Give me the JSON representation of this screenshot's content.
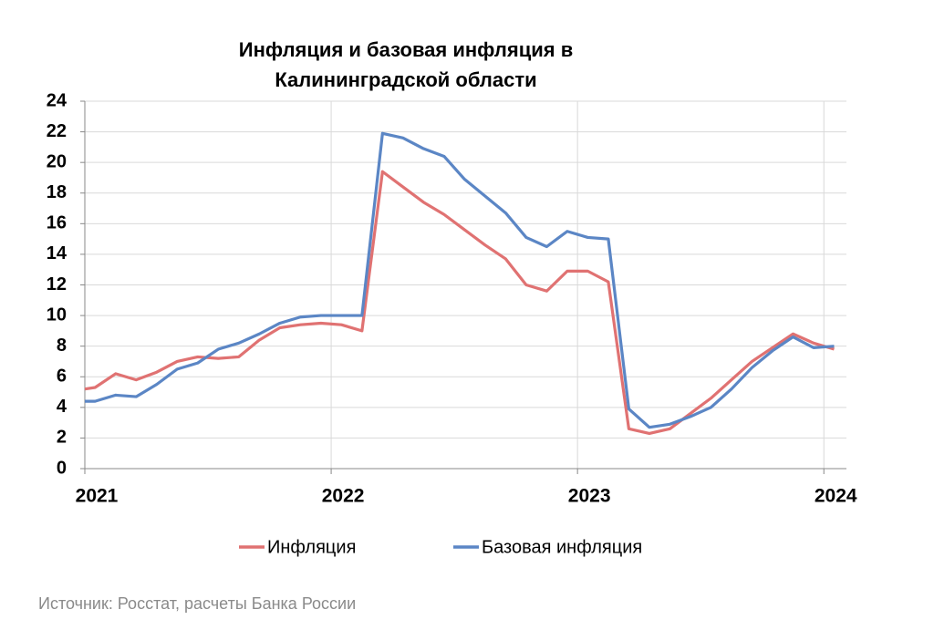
{
  "chart_data": {
    "type": "line",
    "title": "Инфляция и базовая инфляция в Калининградской области",
    "source": "Источник: Росстат, расчеты Банка России",
    "x": [
      0,
      0.5,
      1.5,
      2.5,
      3.5,
      4.5,
      5.5,
      6.5,
      7.5,
      8.5,
      9.5,
      10.5,
      11.5,
      12.5,
      13.5,
      14.5,
      15.5,
      16.5,
      17.5,
      18.5,
      19.5,
      20.5,
      21.5,
      22.5,
      23.5,
      24.5,
      25.5,
      26.5,
      27.5,
      28.5,
      29.5,
      30.5,
      31.5,
      32.5,
      33.5,
      34.5,
      35.5,
      36.5
    ],
    "series": [
      {
        "name": "Инфляция",
        "color": "#e07272",
        "values": [
          5.2,
          5.3,
          6.2,
          5.8,
          6.3,
          7.0,
          7.3,
          7.2,
          7.3,
          8.4,
          9.2,
          9.4,
          9.5,
          9.4,
          9.0,
          19.4,
          18.4,
          17.4,
          16.6,
          15.6,
          14.6,
          13.7,
          12.0,
          11.6,
          12.9,
          12.9,
          12.2,
          2.6,
          2.3,
          2.6,
          3.6,
          4.6,
          5.8,
          7.0,
          7.9,
          8.8,
          8.2,
          7.8
        ]
      },
      {
        "name": "Базовая инфляция",
        "color": "#5b86c5",
        "values": [
          4.4,
          4.4,
          4.8,
          4.7,
          5.5,
          6.5,
          6.9,
          7.8,
          8.2,
          8.8,
          9.5,
          9.9,
          10.0,
          10.0,
          10.0,
          21.9,
          21.6,
          20.9,
          20.4,
          18.9,
          17.8,
          16.7,
          15.1,
          14.5,
          15.5,
          15.1,
          15.0,
          3.9,
          2.7,
          2.9,
          3.4,
          4.0,
          5.2,
          6.6,
          7.7,
          8.6,
          7.9,
          8.0
        ]
      }
    ],
    "xlim": [
      0,
      37.1
    ],
    "xticks": [
      {
        "value": 0,
        "label": "2021"
      },
      {
        "value": 12,
        "label": "2022"
      },
      {
        "value": 24,
        "label": "2023"
      },
      {
        "value": 36,
        "label": "2024"
      }
    ],
    "ylim": [
      0,
      24
    ],
    "yticks": [
      0,
      2,
      4,
      6,
      8,
      10,
      12,
      14,
      16,
      18,
      20,
      22,
      24
    ],
    "grid": true
  }
}
